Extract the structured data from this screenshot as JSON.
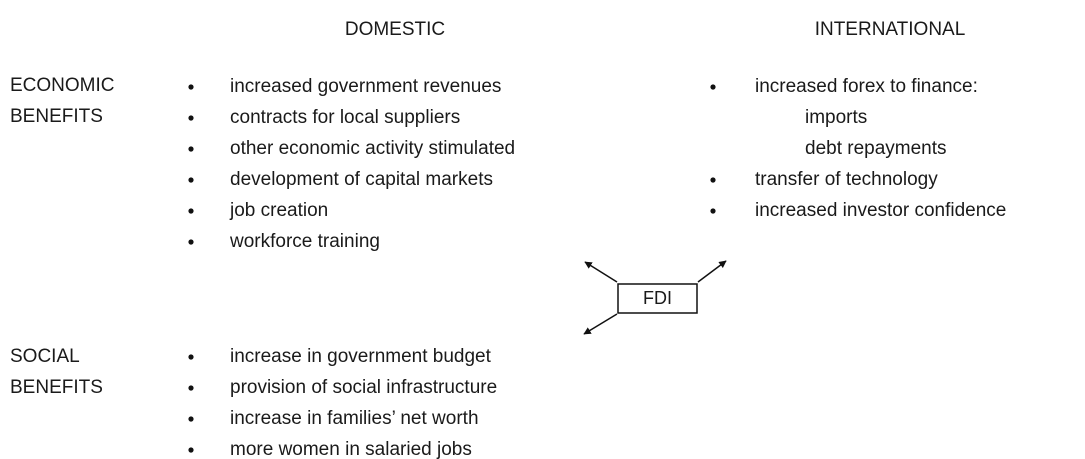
{
  "header": {
    "domestic": "DOMESTIC",
    "international": "INTERNATIONAL"
  },
  "economic": {
    "label": [
      "ECONOMIC",
      "BENEFITS"
    ],
    "domestic": [
      "increased government revenues",
      "contracts for local suppliers",
      "other economic activity stimulated",
      "development of capital markets",
      "job creation",
      "workforce training"
    ],
    "international": [
      {
        "text": "increased forex to finance:",
        "subitems": [
          "imports",
          "debt repayments"
        ]
      },
      {
        "text": "transfer of technology",
        "subitems": []
      },
      {
        "text": "increased investor confidence",
        "subitems": []
      }
    ]
  },
  "center": {
    "label": "FDI"
  },
  "social": {
    "label": [
      "SOCIAL",
      "BENEFITS"
    ],
    "domestic": [
      "increase in government budget",
      "provision of social infrastructure",
      "increase in families’ net worth",
      "more women in salaried jobs"
    ]
  }
}
